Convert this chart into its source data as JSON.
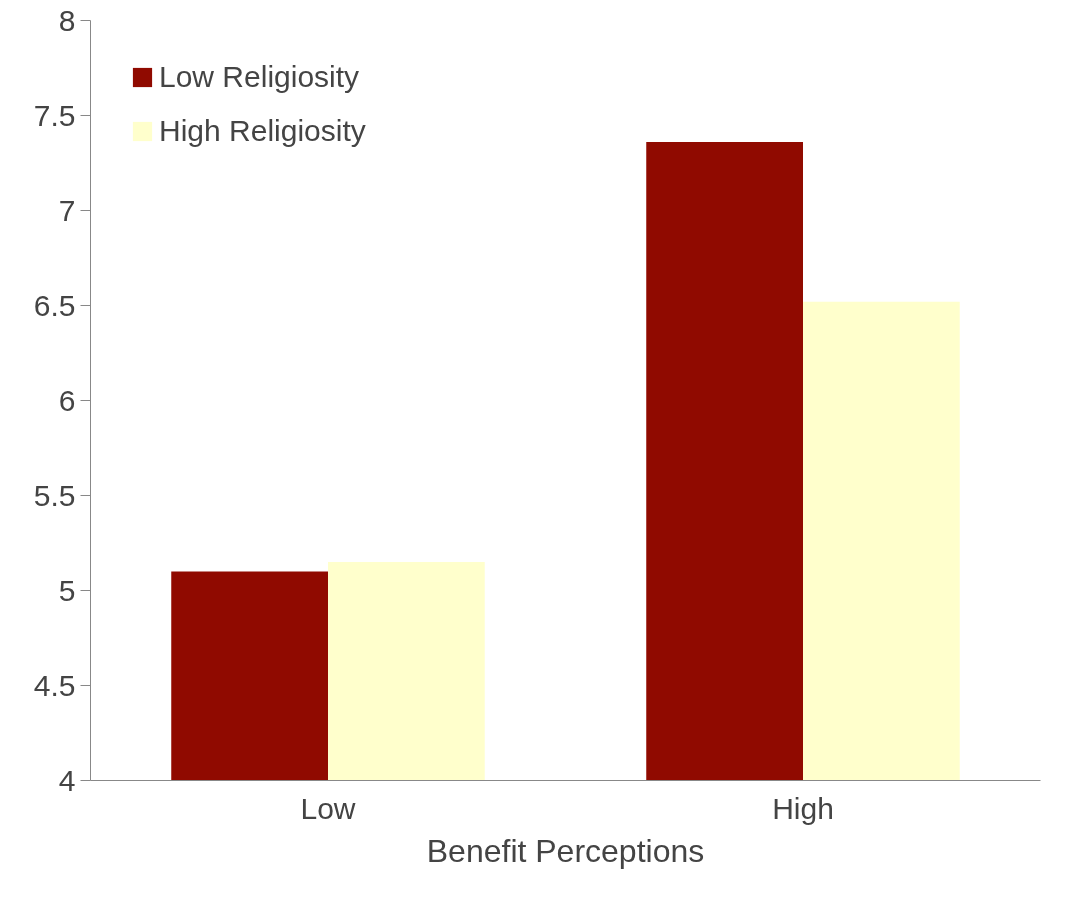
{
  "chart_data": {
    "type": "bar",
    "xlabel": "Benefit Perceptions",
    "categories": [
      "Low",
      "High"
    ],
    "series": [
      {
        "name": "Low Religiosity",
        "color": "#900a00",
        "values": [
          5.1,
          7.36
        ]
      },
      {
        "name": "High Religiosity",
        "color": "#ffffcc",
        "values": [
          5.15,
          6.52
        ]
      }
    ],
    "ylim": [
      4,
      8
    ],
    "yticks": [
      4,
      {
        "value": 4.5,
        "label": "4.5"
      },
      5,
      {
        "value": 5.5,
        "label": "5.5"
      },
      6,
      {
        "value": 6.5,
        "label": "6.5"
      },
      7,
      {
        "value": 7.5,
        "label": "7.5"
      },
      8
    ],
    "grid": false,
    "legend": "top left"
  }
}
